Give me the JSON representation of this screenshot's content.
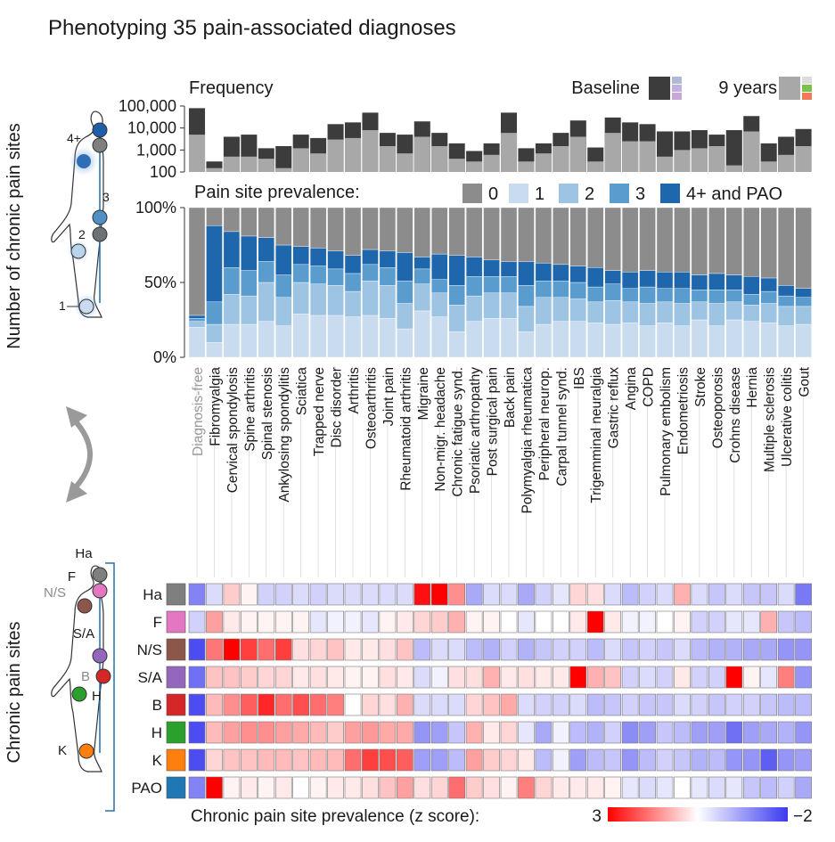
{
  "title": "Phenotyping 35 pain-associated diagnoses",
  "left_labels": {
    "top": "Number of chronic pain sites",
    "bottom": "Chronic pain sites"
  },
  "figure_markers": {
    "count_markers": [
      "4+",
      "3",
      "2",
      "1"
    ],
    "site_markers": [
      "Ha",
      "F",
      "N/S",
      "S/A",
      "B",
      "H",
      "K"
    ]
  },
  "colors": {
    "freq_baseline": "#3c3c3c",
    "freq_9years": "#a8a8a8",
    "prev": [
      "#8c8c8c",
      "#c9dbee",
      "#9dc4e2",
      "#5a9ccd",
      "#1f67ad"
    ],
    "heat_pos": "#ff0000",
    "heat_neg": "#3a3af0",
    "site_colors": [
      "#7f7f7f",
      "#e377c2",
      "#8c564b",
      "#9467bd",
      "#d62728",
      "#2ca02c",
      "#ff7f0e",
      "#1f77b4"
    ]
  },
  "chart_data": [
    {
      "type": "bar",
      "title": "Frequency",
      "categories": [
        "Diagnosis-free",
        "Fibromyalgia",
        "Cervical spondylosis",
        "Spine arthritis",
        "Spinal stenosis",
        "Ankylosing spondylitis",
        "Sciatica",
        "Trapped nerve",
        "Disc disorder",
        "Arthritis",
        "Osteoarthritis",
        "Joint pain",
        "Rheumatoid arthritis",
        "Migraine",
        "Non-migr. headache",
        "Chronic fatigue synd.",
        "Psoriatic arthropathy",
        "Post surgical pain",
        "Back pain",
        "Polymyalgia rheumatica",
        "Peripheral neurop.",
        "Carpal tunnel synd.",
        "IBS",
        "Trigemminal neuralgia",
        "Gastric reflux",
        "Angina",
        "COPD",
        "Pulmonary embolism",
        "Endometriosis",
        "Stroke",
        "Osteoporosis",
        "Crohns disease",
        "Hernia",
        "Multiple sclerosis",
        "Ulcerative colitis",
        "Gout"
      ],
      "series": [
        {
          "name": "Baseline",
          "values": [
            80000,
            300,
            4000,
            5000,
            1200,
            1500,
            5000,
            3500,
            15000,
            18000,
            50000,
            6000,
            5000,
            20000,
            6000,
            2000,
            900,
            2000,
            50000,
            1200,
            2000,
            6000,
            22000,
            1300,
            30000,
            18000,
            15000,
            7000,
            7000,
            8000,
            5000,
            8000,
            35000,
            2000,
            4000,
            9000
          ]
        },
        {
          "name": "9 years",
          "values": [
            5000,
            150,
            500,
            500,
            400,
            150,
            1200,
            700,
            3000,
            3500,
            8000,
            1500,
            700,
            4000,
            1500,
            400,
            300,
            600,
            6000,
            300,
            700,
            1500,
            4000,
            300,
            6000,
            2500,
            2500,
            500,
            1000,
            1200,
            1500,
            200,
            7000,
            300,
            600,
            1500
          ]
        }
      ],
      "ylabel": "",
      "yscale": "log",
      "yticks": [
        "100,000",
        "10,000",
        "1,000",
        "100"
      ],
      "ylim": [
        100,
        100000
      ],
      "legend": [
        "Baseline",
        "9 years"
      ]
    },
    {
      "type": "bar",
      "stacked": true,
      "title": "Pain site prevalence:",
      "legend": [
        "0",
        "1",
        "2",
        "3",
        "4+ and PAO"
      ],
      "yticks": [
        "100%",
        "50%",
        "0%"
      ],
      "ylim": [
        0,
        100
      ],
      "unit": "%",
      "highlight_category": "Diagnosis-free",
      "categories": [
        "Diagnosis-free",
        "Fibromyalgia",
        "Cervical spondylosis",
        "Spine arthritis",
        "Spinal stenosis",
        "Ankylosing spondylitis",
        "Sciatica",
        "Trapped nerve",
        "Disc disorder",
        "Arthritis",
        "Osteoarthritis",
        "Joint pain",
        "Rheumatoid arthritis",
        "Migraine",
        "Non-migr. headache",
        "Chronic fatigue synd.",
        "Psoriatic arthropathy",
        "Post surgical pain",
        "Back pain",
        "Polymyalgia rheumatica",
        "Peripheral neurop.",
        "Carpal tunnel synd.",
        "IBS",
        "Trigemminal neuralgia",
        "Gastric reflux",
        "Angina",
        "COPD",
        "Pulmonary embolism",
        "Endometriosis",
        "Stroke",
        "Osteoporosis",
        "Crohns disease",
        "Hernia",
        "Multiple sclerosis",
        "Ulcerative colitis",
        "Gout"
      ],
      "series": [
        {
          "name": "1",
          "values": [
            20,
            10,
            22,
            22,
            24,
            21,
            29,
            28,
            28,
            27,
            28,
            26,
            19,
            31,
            27,
            17,
            24,
            26,
            26,
            17,
            22,
            24,
            24,
            23,
            22,
            23,
            21,
            23,
            21,
            25,
            21,
            25,
            24,
            23,
            21,
            22
          ]
        },
        {
          "name": "2",
          "values": [
            4,
            12,
            20,
            19,
            26,
            19,
            21,
            21,
            20,
            17,
            23,
            22,
            17,
            18,
            16,
            18,
            17,
            17,
            17,
            17,
            18,
            16,
            15,
            14,
            16,
            14,
            15,
            14,
            15,
            12,
            15,
            12,
            11,
            13,
            13,
            12
          ]
        },
        {
          "name": "3",
          "values": [
            2,
            15,
            18,
            17,
            14,
            15,
            12,
            12,
            11,
            12,
            11,
            12,
            15,
            10,
            9,
            13,
            13,
            11,
            11,
            14,
            11,
            11,
            11,
            10,
            11,
            9,
            11,
            9,
            10,
            8,
            9,
            8,
            7,
            8,
            7,
            6
          ]
        },
        {
          "name": "4+ and PAO",
          "values": [
            2,
            51,
            24,
            23,
            16,
            20,
            12,
            12,
            12,
            12,
            10,
            11,
            19,
            8,
            17,
            20,
            13,
            11,
            10,
            16,
            12,
            11,
            11,
            13,
            9,
            11,
            11,
            11,
            11,
            10,
            11,
            10,
            12,
            9,
            7,
            6
          ]
        },
        {
          "name": "0",
          "values": [
            72,
            12,
            16,
            19,
            20,
            25,
            26,
            27,
            29,
            32,
            28,
            29,
            30,
            33,
            31,
            32,
            33,
            35,
            36,
            36,
            37,
            38,
            39,
            40,
            42,
            43,
            42,
            43,
            43,
            45,
            44,
            45,
            46,
            47,
            52,
            54
          ]
        }
      ]
    },
    {
      "type": "heatmap",
      "title": "",
      "colorbar_label": "Chronic pain site prevalence (z score):",
      "colorbar_max_label": "3",
      "colorbar_min_label": "−2",
      "zlim": [
        -2,
        3
      ],
      "rows": [
        "Ha",
        "F",
        "N/S",
        "S/A",
        "B",
        "H",
        "K",
        "PAO"
      ],
      "columns": [
        "Diagnosis-free",
        "Fibromyalgia",
        "Cervical spondylosis",
        "Spine arthritis",
        "Spinal stenosis",
        "Ankylosing spondylitis",
        "Sciatica",
        "Trapped nerve",
        "Disc disorder",
        "Arthritis",
        "Osteoarthritis",
        "Joint pain",
        "Rheumatoid arthritis",
        "Migraine",
        "Non-migr. headache",
        "Chronic fatigue synd.",
        "Psoriatic arthropathy",
        "Post surgical pain",
        "Back pain",
        "Polymyalgia rheumatica",
        "Peripheral neurop.",
        "Carpal tunnel synd.",
        "IBS",
        "Trigemminal neuralgia",
        "Gastric reflux",
        "Angina",
        "COPD",
        "Pulmonary embolism",
        "Endometriosis",
        "Stroke",
        "Osteoporosis",
        "Crohns disease",
        "Hernia",
        "Multiple sclerosis",
        "Ulcerative colitis",
        "Gout"
      ],
      "values": [
        [
          -1.2,
          -0.3,
          0.5,
          0.1,
          -0.4,
          -0.4,
          -0.3,
          -0.4,
          -0.3,
          -0.3,
          -0.3,
          -0.3,
          -0.3,
          2.8,
          3.0,
          1.2,
          -0.8,
          -0.3,
          -0.3,
          -0.8,
          -0.4,
          -0.2,
          0.4,
          0.3,
          -0.3,
          -0.6,
          -0.4,
          -0.3,
          0.8,
          -0.3,
          -0.5,
          -0.3,
          -0.5,
          -0.5,
          -0.3,
          -1.3
        ],
        [
          -0.4,
          1.0,
          0.2,
          0.1,
          0.1,
          0.1,
          0.1,
          -0.2,
          -0.1,
          -0.1,
          -0.2,
          0.1,
          0.2,
          0.4,
          0.5,
          0.8,
          0.1,
          0.1,
          0.0,
          -0.2,
          0.0,
          0.0,
          0.2,
          3.0,
          0.2,
          -0.1,
          -0.1,
          0.0,
          0.1,
          -0.4,
          -0.4,
          -0.2,
          -0.2,
          0.8,
          -0.5,
          -0.6
        ],
        [
          -1.8,
          1.5,
          3.0,
          2.2,
          1.6,
          2.2,
          0.3,
          0.4,
          0.6,
          0.2,
          0.2,
          0.3,
          0.6,
          -0.6,
          -0.3,
          -0.3,
          -0.6,
          -0.7,
          -0.4,
          -0.7,
          -0.5,
          -0.4,
          -0.4,
          -0.6,
          -0.3,
          -0.5,
          -0.4,
          -0.5,
          -0.3,
          -0.6,
          -0.7,
          -0.7,
          -0.8,
          -0.8,
          -1.0,
          -1.0
        ],
        [
          -1.4,
          0.6,
          0.6,
          0.5,
          0.4,
          0.4,
          0.2,
          0.3,
          0.2,
          0.1,
          0.1,
          0.3,
          0.2,
          -0.3,
          -0.1,
          0.3,
          0.3,
          0.8,
          0.2,
          0.3,
          0.2,
          0.2,
          3.0,
          0.8,
          0.6,
          -0.4,
          -0.3,
          -0.4,
          0.2,
          -0.4,
          -0.4,
          3.0,
          0.1,
          -0.2,
          1.4,
          -1.0
        ],
        [
          -1.8,
          0.7,
          1.2,
          1.8,
          2.5,
          1.6,
          2.0,
          1.6,
          1.4,
          0.0,
          0.4,
          0.3,
          0.8,
          -0.3,
          -0.3,
          -0.3,
          0.4,
          0.6,
          0.9,
          -0.3,
          -0.4,
          -0.4,
          -0.3,
          -0.6,
          -0.5,
          -0.4,
          -0.5,
          -0.5,
          -0.3,
          -0.4,
          -0.5,
          -0.4,
          -0.4,
          -0.5,
          -0.6,
          -0.6
        ],
        [
          -1.8,
          0.7,
          1.0,
          1.2,
          1.2,
          1.0,
          0.9,
          0.7,
          0.5,
          1.0,
          1.1,
          0.9,
          0.9,
          -1.0,
          -0.9,
          -0.5,
          0.8,
          0.2,
          0.4,
          -0.2,
          -0.8,
          -0.1,
          -0.6,
          -0.7,
          -0.4,
          -1.1,
          -0.9,
          -0.5,
          -0.6,
          -0.9,
          -0.9,
          -1.4,
          -0.9,
          -0.8,
          -0.7,
          -1.0
        ],
        [
          -1.8,
          0.4,
          0.6,
          0.6,
          0.7,
          0.7,
          0.6,
          0.7,
          0.7,
          1.6,
          2.2,
          2.0,
          1.8,
          -0.9,
          -0.9,
          -0.6,
          1.0,
          0.5,
          0.4,
          0.2,
          -0.6,
          -0.1,
          -0.9,
          -0.6,
          -0.5,
          -1.0,
          -0.6,
          -0.4,
          -0.5,
          -0.7,
          -0.6,
          -1.0,
          -1.0,
          -1.6,
          -1.0,
          -0.9
        ],
        [
          -1.2,
          3.0,
          0.1,
          0.2,
          0.1,
          0.2,
          0.0,
          0.1,
          0.2,
          0.2,
          0.3,
          0.6,
          1.0,
          0.3,
          0.4,
          1.6,
          0.5,
          0.3,
          0.1,
          1.4,
          0.4,
          0.2,
          0.2,
          0.2,
          0.1,
          -0.2,
          -0.3,
          -0.2,
          0.0,
          -0.2,
          -0.3,
          -0.2,
          -0.5,
          -0.6,
          -0.4,
          -0.8
        ]
      ]
    }
  ]
}
